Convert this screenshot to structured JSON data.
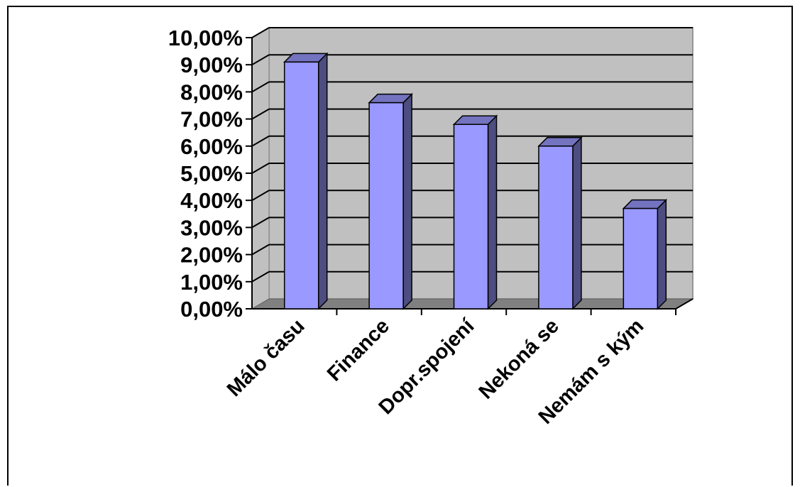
{
  "chart_data": {
    "type": "bar",
    "style": "3d-column",
    "categories": [
      "Málo času",
      "Finance",
      "Dopr.spojení",
      "Nekoná se",
      "Nemám s kým"
    ],
    "values": [
      9.1,
      7.6,
      6.8,
      6.0,
      3.7
    ],
    "value_unit": "%",
    "yticks": [
      "0,00%",
      "1,00%",
      "2,00%",
      "3,00%",
      "4,00%",
      "5,00%",
      "6,00%",
      "7,00%",
      "8,00%",
      "9,00%",
      "10,00%"
    ],
    "ylim": [
      0,
      10
    ],
    "grid": true,
    "legend": "none",
    "title": "",
    "xlabel": "",
    "ylabel": "",
    "colors": {
      "bar_front": "#9999ff",
      "bar_side": "#4d4d80",
      "bar_top": "#7373bf",
      "wall": "#c0c0c0",
      "floor": "#808080",
      "gridline": "#000000",
      "text": "#000000"
    }
  }
}
